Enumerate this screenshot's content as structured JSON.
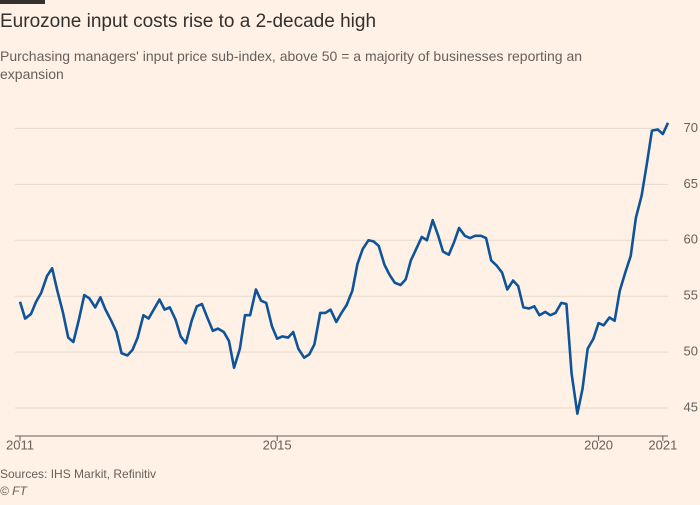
{
  "chart_data": {
    "type": "line",
    "title": "Eurozone input costs rise to a 2-decade high",
    "subtitle": "Purchasing managers' input price sub-index, above 50 = a majority of businesses reporting an expansion",
    "source": "Sources: IHS Markit, Refinitiv",
    "credit": "© FT",
    "x": [
      2011,
      2011.08,
      2011.17,
      2011.25,
      2011.33,
      2011.42,
      2011.5,
      2011.58,
      2011.67,
      2011.75,
      2011.83,
      2011.92,
      2012,
      2012.08,
      2012.17,
      2012.25,
      2012.33,
      2012.42,
      2012.5,
      2012.58,
      2012.67,
      2012.75,
      2012.83,
      2012.92,
      2013,
      2013.08,
      2013.17,
      2013.25,
      2013.33,
      2013.42,
      2013.5,
      2013.58,
      2013.67,
      2013.75,
      2013.83,
      2013.92,
      2014,
      2014.08,
      2014.17,
      2014.25,
      2014.33,
      2014.42,
      2014.5,
      2014.58,
      2014.67,
      2014.75,
      2014.83,
      2014.92,
      2015,
      2015.08,
      2015.17,
      2015.25,
      2015.33,
      2015.42,
      2015.5,
      2015.58,
      2015.67,
      2015.75,
      2015.83,
      2015.92,
      2016,
      2016.08,
      2016.17,
      2016.25,
      2016.33,
      2016.42,
      2016.5,
      2016.58,
      2016.67,
      2016.75,
      2016.83,
      2016.92,
      2017,
      2017.08,
      2017.17,
      2017.25,
      2017.33,
      2017.42,
      2017.5,
      2017.58,
      2017.67,
      2017.75,
      2017.83,
      2017.92,
      2018,
      2018.08,
      2018.17,
      2018.25,
      2018.33,
      2018.42,
      2018.5,
      2018.58,
      2018.67,
      2018.75,
      2018.83,
      2018.92,
      2019,
      2019.08,
      2019.17,
      2019.25,
      2019.33,
      2019.42,
      2019.5,
      2019.58,
      2019.67,
      2019.75,
      2019.83,
      2019.92,
      2020,
      2020.08,
      2020.17,
      2020.25,
      2020.33,
      2020.42,
      2020.5,
      2020.58,
      2020.67,
      2020.75,
      2020.83,
      2020.92,
      2021,
      2021.08
    ],
    "series": [
      {
        "name": "Input price sub-index",
        "color": "#0f5499",
        "values": [
          54.5,
          53,
          53.4,
          54.5,
          55.3,
          56.8,
          57.5,
          55.5,
          53.5,
          51.3,
          50.9,
          53,
          55.1,
          54.8,
          54,
          54.9,
          53.8,
          52.8,
          51.8,
          49.9,
          49.7,
          50.2,
          51.3,
          53.3,
          53,
          53.8,
          54.7,
          53.8,
          54,
          52.9,
          51.4,
          50.8,
          52.8,
          54.1,
          54.3,
          53,
          51.9,
          52.1,
          51.8,
          51,
          48.6,
          50.3,
          53.3,
          53.3,
          55.6,
          54.6,
          54.4,
          52.3,
          51.2,
          51.4,
          51.3,
          51.8,
          50.3,
          49.5,
          49.8,
          50.7,
          53.5,
          53.5,
          53.8,
          52.7,
          53.5,
          54.2,
          55.5,
          57.9,
          59.2,
          60,
          59.9,
          59.5,
          57.8,
          56.9,
          56.2,
          56,
          56.5,
          58.2,
          59.3,
          60.3,
          60,
          61.8,
          60.5,
          59,
          58.7,
          59.8,
          61.1,
          60.4,
          60.2,
          60.4,
          60.4,
          60.2,
          58.2,
          57.7,
          57.1,
          55.6,
          56.4,
          55.9,
          54,
          53.9,
          54.1,
          53.3,
          53.6,
          53.3,
          53.5,
          54.4,
          54.3,
          48.1,
          44.5,
          46.7,
          50.3,
          51.2,
          52.6,
          52.4,
          53.1,
          52.8,
          55.5,
          57.2,
          58.6,
          62,
          64,
          66.8,
          69.8,
          69.9,
          69.5,
          70.5
        ]
      }
    ],
    "xlim": [
      2011,
      2021.08
    ],
    "xticks": [
      2011,
      2015,
      2020,
      2021
    ],
    "ylim": [
      42.5,
      71.2
    ],
    "yticks": [
      45,
      50,
      55,
      60,
      65,
      70
    ],
    "grid": true
  }
}
